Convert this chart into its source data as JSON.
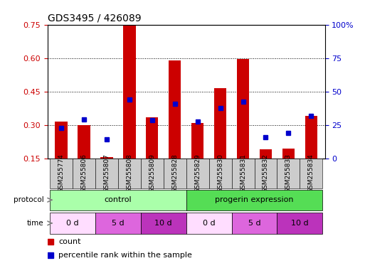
{
  "title": "GDS3495 / 426089",
  "samples": [
    "GSM255774",
    "GSM255806",
    "GSM255807",
    "GSM255808",
    "GSM255809",
    "GSM255828",
    "GSM255829",
    "GSM255830",
    "GSM255831",
    "GSM255832",
    "GSM255833",
    "GSM255834"
  ],
  "red_bars": [
    0.315,
    0.3,
    0.155,
    0.745,
    0.335,
    0.59,
    0.31,
    0.465,
    0.595,
    0.19,
    0.195,
    0.34
  ],
  "blue_dots": [
    0.285,
    0.325,
    0.235,
    0.415,
    0.32,
    0.395,
    0.315,
    0.375,
    0.405,
    0.245,
    0.265,
    0.34
  ],
  "ylim_left": [
    0.15,
    0.75
  ],
  "ylim_right": [
    0,
    100
  ],
  "yticks_left": [
    0.15,
    0.3,
    0.45,
    0.6,
    0.75
  ],
  "yticks_right": [
    0,
    25,
    50,
    75,
    100
  ],
  "ytick_labels_right": [
    "0",
    "25",
    "50",
    "75",
    "100%"
  ],
  "hgrid_lines": [
    0.3,
    0.45,
    0.6
  ],
  "protocol_labels": [
    "control",
    "progerin expression"
  ],
  "protocol_color_light": "#aaffaa",
  "protocol_color_dark": "#55dd55",
  "time_block_data": [
    [
      0,
      2,
      "0 d",
      "#ffddff"
    ],
    [
      2,
      4,
      "5 d",
      "#dd66dd"
    ],
    [
      4,
      6,
      "10 d",
      "#bb33bb"
    ],
    [
      6,
      8,
      "0 d",
      "#ffddff"
    ],
    [
      8,
      10,
      "5 d",
      "#dd66dd"
    ],
    [
      10,
      12,
      "10 d",
      "#bb33bb"
    ]
  ],
  "red_color": "#cc0000",
  "blue_color": "#0000cc",
  "bg_color": "#ffffff",
  "tick_label_color_left": "#cc0000",
  "tick_label_color_right": "#0000cc",
  "sample_label_bg": "#cccccc"
}
